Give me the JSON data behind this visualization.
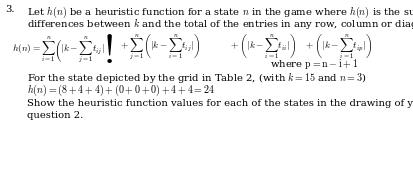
{
  "figsize": [
    4.13,
    1.95
  ],
  "dpi": 100,
  "bg_color": "#ffffff",
  "text_color": "#000000",
  "question_number": "3.",
  "line1": "Let $h(n)$ be a heuristic function for a state $n$ in the game where $h(n)$ is the sum of all",
  "line2": "differences between $k$ and the total of the entries in any row, column or diagonal:",
  "formula_lhs": "$h(n) = \\sum_{i=1}^{n}\\left(|k - \\sum_{j=1}^{n}t_{ij}|\\right)$",
  "formula_p2": "$+\\; \\sum_{j=1}^{n}\\left(|k - \\sum_{i=1}^{n}t_{ij}|\\right)$",
  "formula_p3": "$+\\; \\left(|k - \\sum_{i=1}^{n}t_{ii}|\\right)$",
  "formula_p4": "$+\\; \\left(|k - \\sum_{i=1}^{n}t_{ip}|\\right)$",
  "where_line": "where $\\mathrm{p = n - i + 1}$",
  "for_line": "For the state depicted by the grid in Table 2, (with $k = 15$ and $n = 3$)",
  "calc_line": "$h(n) = (8 + 4 + 4) + (0 + 0 + 0) + 4 + 4 = 24$",
  "show_line1": "Show the heuristic function values for each of the states in the drawing of your answer to",
  "show_line2": "question 2.",
  "font_size_body": 7.2,
  "font_size_formula": 6.8,
  "font_size_q": 7.2
}
